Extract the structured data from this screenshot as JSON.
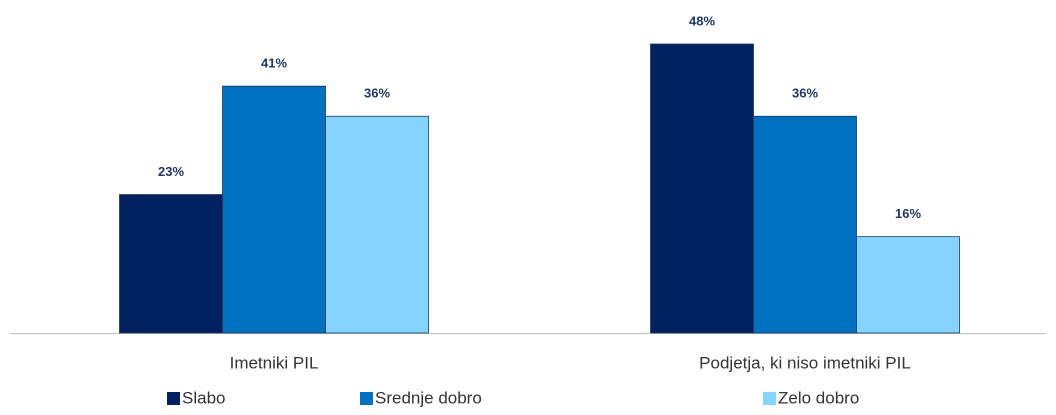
{
  "chart_data": {
    "type": "bar",
    "categories": [
      "Imetniki PIL",
      "Podjetja, ki niso imetniki PIL"
    ],
    "series": [
      {
        "name": "Slabo",
        "color": "#002060",
        "values": [
          23,
          48
        ],
        "value_labels": [
          "23%",
          "48%"
        ]
      },
      {
        "name": "Srednje dobro",
        "color": "#0070c0",
        "values": [
          41,
          36
        ],
        "value_labels": [
          "41%",
          "36%"
        ]
      },
      {
        "name": "Zelo dobro",
        "color": "#85d3ff",
        "values": [
          36,
          16
        ],
        "value_labels": [
          "36%",
          "16%"
        ]
      }
    ]
  }
}
